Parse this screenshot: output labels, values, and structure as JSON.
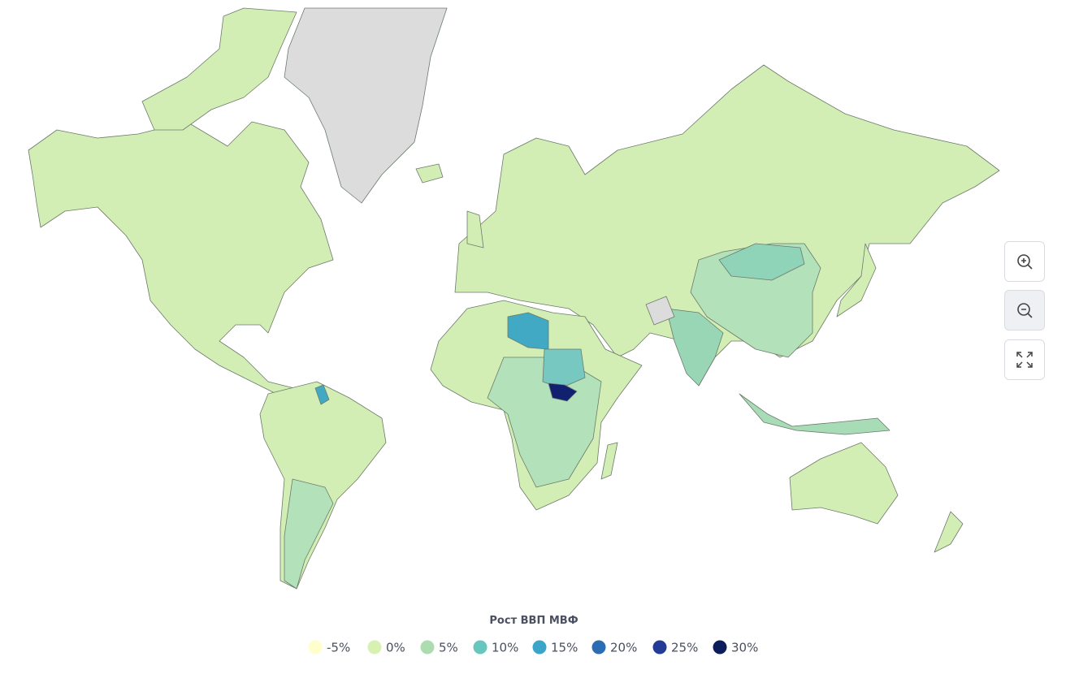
{
  "map": {
    "legend": {
      "title": "Рост ВВП МВФ",
      "items": [
        {
          "value": -5,
          "label": "-5%",
          "color": "#ffffcc"
        },
        {
          "value": 0,
          "label": "0%",
          "color": "#d9f0b3"
        },
        {
          "value": 5,
          "label": "5%",
          "color": "#addcb1"
        },
        {
          "value": 10,
          "label": "10%",
          "color": "#67c6be"
        },
        {
          "value": 15,
          "label": "15%",
          "color": "#3aa4c9"
        },
        {
          "value": 20,
          "label": "20%",
          "color": "#2a6db3"
        },
        {
          "value": 25,
          "label": "25%",
          "color": "#233a96"
        },
        {
          "value": 30,
          "label": "30%",
          "color": "#0b1e5b"
        }
      ]
    }
  }
}
